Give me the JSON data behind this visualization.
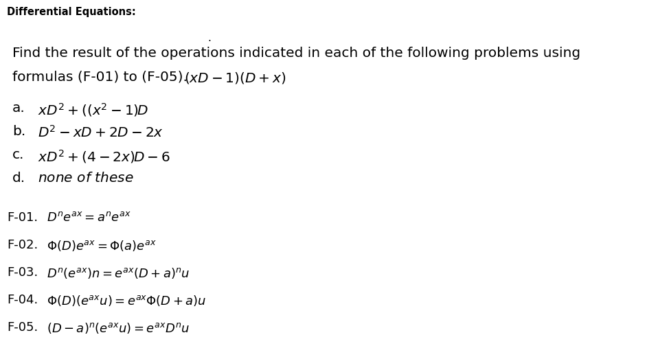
{
  "background_color": "#ffffff",
  "title_text": "Differential Equations:",
  "title_fontsize": 10.5,
  "main_fontsize": 14.5,
  "option_fontsize": 14.5,
  "formula_fontsize": 13.0,
  "dot_char": ".",
  "line1": "Find the result of the operations indicated in each of the following problems using",
  "line2_plain": "formulas (F-01) to (F-05). ",
  "line2_math": "$(xD - 1)(D + x)$",
  "options": [
    {
      "label": "a.",
      "math": "$xD^2 + ((x^2 - 1)D$"
    },
    {
      "label": "b.",
      "math": "$D^2 - xD + 2D - 2x$"
    },
    {
      "label": "c.",
      "math": "$xD^2 + (4 - 2x)D - 6$"
    },
    {
      "label": "d.",
      "math": "$\\mathit{none\\ of\\ these}$"
    }
  ],
  "formulas": [
    {
      "label": "F-01.",
      "math": "$D^n e^{ax} = a^n e^{ax}$"
    },
    {
      "label": "F-02.",
      "math": "$\\Phi(D)e^{ax} = \\Phi(a)e^{ax}$"
    },
    {
      "label": "F-03.",
      "math": "$D^n(e^{ax})n = e^{ax}(D + a)^n u$"
    },
    {
      "label": "F-04.",
      "math": "$\\Phi(D)(e^{ax}u) = e^{ax}\\Phi(D + a)u$"
    },
    {
      "label": "F-05.",
      "math": "$(D - a)^n(e^{ax}u) = e^{ax}D^n u$"
    }
  ]
}
